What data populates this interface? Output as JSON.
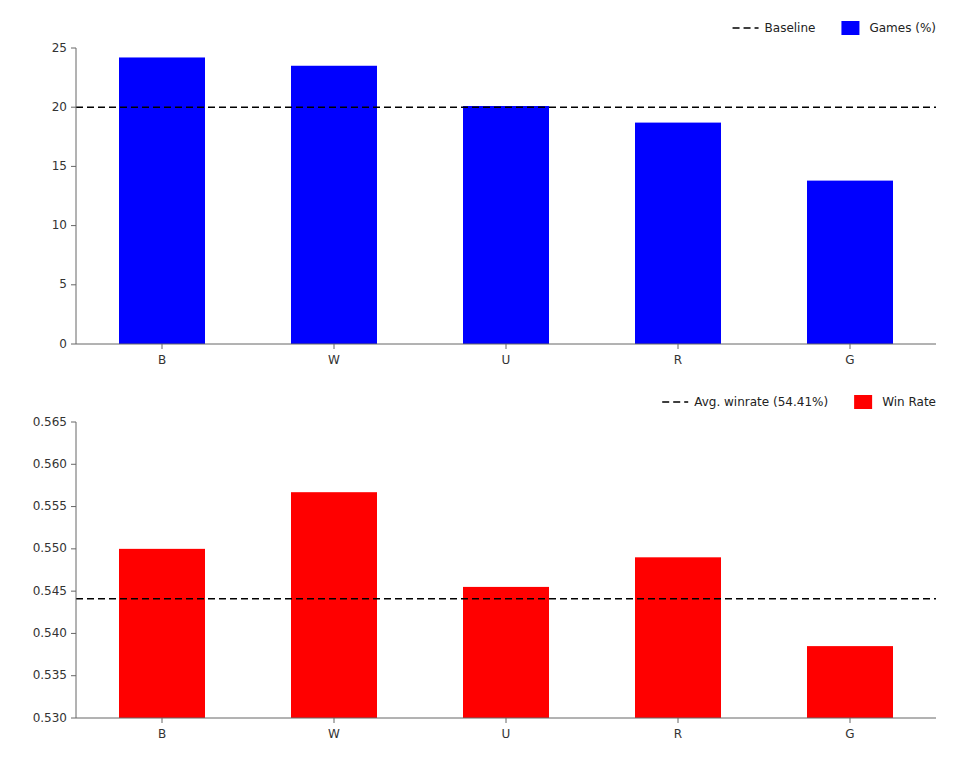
{
  "chart_data": [
    {
      "type": "bar",
      "categories": [
        "B",
        "W",
        "U",
        "R",
        "G"
      ],
      "series": [
        {
          "name": "Games (%)",
          "color": "blue",
          "values": [
            24.2,
            23.5,
            20.1,
            18.7,
            13.8
          ]
        }
      ],
      "reference_line": {
        "name": "Baseline",
        "value": 20.0,
        "color": "black",
        "line_style": "dashed"
      },
      "ylim": [
        0,
        25
      ],
      "yticks": [
        0,
        5,
        10,
        15,
        20,
        25
      ],
      "grid": false,
      "legend": "upper right"
    },
    {
      "type": "bar",
      "categories": [
        "B",
        "W",
        "U",
        "R",
        "G"
      ],
      "series": [
        {
          "name": "Win Rate",
          "color": "red",
          "values": [
            0.55,
            0.5567,
            0.5455,
            0.549,
            0.5385
          ]
        }
      ],
      "reference_line": {
        "name": "Avg. winrate (54.41%)",
        "value": 0.5441,
        "color": "black",
        "line_style": "dashed"
      },
      "ylim": [
        0.53,
        0.565
      ],
      "yticks": [
        {
          "value": 0.53,
          "label": "0.530"
        },
        0.535,
        {
          "value": 0.54,
          "label": "0.540"
        },
        0.545,
        {
          "value": 0.55,
          "label": "0.550"
        },
        0.555,
        {
          "value": 0.56,
          "label": "0.560"
        },
        0.565
      ],
      "grid": false,
      "legend": "upper right"
    }
  ]
}
